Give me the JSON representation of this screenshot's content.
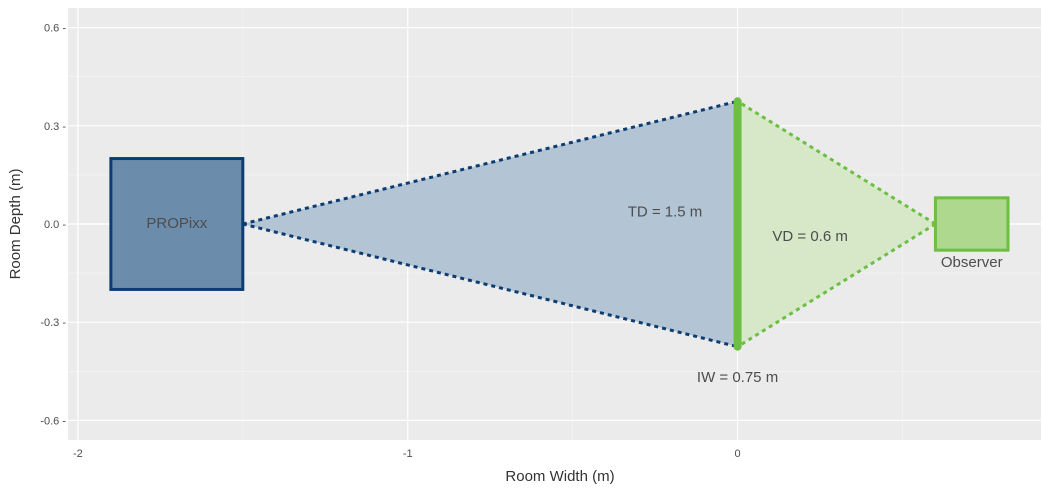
{
  "chart_data": {
    "type": "scatter",
    "xlabel": "Room Width (m)",
    "ylabel": "Room Depth (m)",
    "xlim": [
      -2.03,
      0.92
    ],
    "ylim": [
      -0.66,
      0.66
    ],
    "x_ticks": [
      -2,
      -1,
      0
    ],
    "y_ticks": [
      -0.6,
      -0.3,
      0.0,
      0.3,
      0.6
    ],
    "x_tick_labels": [
      "-2",
      "-1",
      "0"
    ],
    "y_tick_labels": [
      "-0.6 -",
      "-0.3 -",
      "0.0 -",
      "0.3 -",
      "0.6 -"
    ],
    "grid": true,
    "colors": {
      "panel": "#ebebeb",
      "grid_major": "#ffffff",
      "grid_minor": "#f5f5f5",
      "projector_fill": "#6b8cab",
      "projector_stroke": "#0b3d73",
      "throw_fill": "#b3c4d4",
      "throw_line": "#0b3d73",
      "view_fill": "#d6e8c8",
      "view_line": "#6cbf43",
      "screen": "#6cbf43",
      "observer_fill": "#aed88e",
      "observer_stroke": "#6cbf43"
    },
    "shapes": {
      "projector": {
        "x_min": -1.9,
        "x_max": -1.5,
        "y_min": -0.2,
        "y_max": 0.2
      },
      "observer": {
        "x_min": 0.6,
        "x_max": 0.82,
        "y_min": -0.08,
        "y_max": 0.08
      },
      "screen": {
        "x": 0.0,
        "y_min": -0.375,
        "y_max": 0.375
      },
      "throw_triangle": [
        [
          -1.5,
          0.0
        ],
        [
          0.0,
          0.375
        ],
        [
          0.0,
          -0.375
        ]
      ],
      "view_triangle": [
        [
          0.6,
          0.0
        ],
        [
          0.0,
          0.375
        ],
        [
          0.0,
          -0.375
        ]
      ]
    },
    "labels": {
      "projector": {
        "text": "PROPixx",
        "x": -1.7,
        "y": 0.0
      },
      "observer": {
        "text": "Observer",
        "x": 0.71,
        "y": -0.12
      },
      "throw_distance": {
        "text": "TD = 1.5 m",
        "x": -0.22,
        "y": 0.035
      },
      "viewing_distance": {
        "text": "VD = 0.6 m",
        "x": 0.22,
        "y": -0.04
      },
      "image_width": {
        "text": "IW = 0.75 m",
        "x": 0.0,
        "y": -0.47
      }
    }
  }
}
